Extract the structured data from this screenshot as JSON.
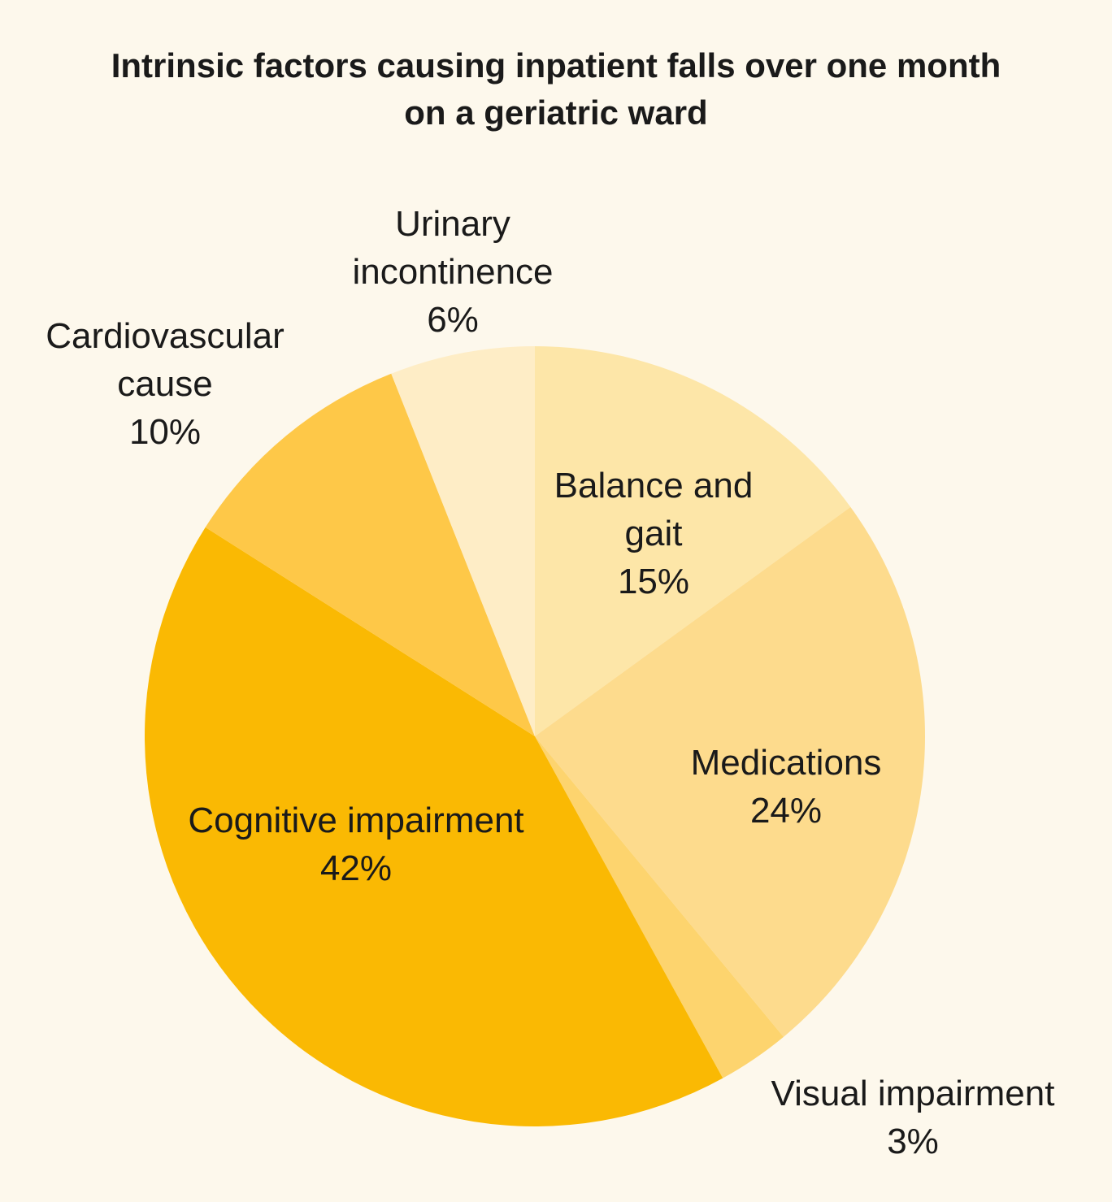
{
  "chart_data": {
    "type": "pie",
    "title_lines": [
      "Intrinsic factors causing inpatient falls over one month",
      "on a geriatric ward"
    ],
    "slices": [
      {
        "label_lines": [
          "Balance and",
          "gait"
        ],
        "percent_text": "15%",
        "value": 15,
        "color": "#fde6a8"
      },
      {
        "label_lines": [
          "Medications"
        ],
        "percent_text": "24%",
        "value": 24,
        "color": "#fddb8d"
      },
      {
        "label_lines": [
          "Visual impairment"
        ],
        "percent_text": "3%",
        "value": 3,
        "color": "#fdd46e"
      },
      {
        "label_lines": [
          "Cognitive impairment"
        ],
        "percent_text": "42%",
        "value": 42,
        "color": "#fab903"
      },
      {
        "label_lines": [
          "Cardiovascular",
          "cause"
        ],
        "percent_text": "10%",
        "value": 10,
        "color": "#fec848"
      },
      {
        "label_lines": [
          "Urinary",
          "incontinence"
        ],
        "percent_text": "6%",
        "value": 6,
        "color": "#feedc6"
      }
    ]
  },
  "colors": {
    "background": "#fdf8ec",
    "text": "#1a1a1a"
  }
}
